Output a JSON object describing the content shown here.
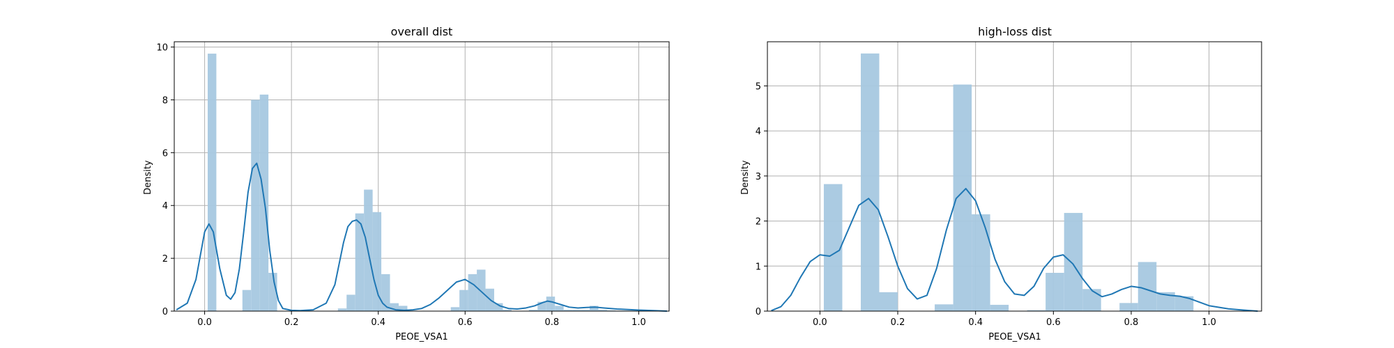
{
  "chart_data": [
    {
      "type": "histogram-kde",
      "title": "overall dist",
      "xlabel": "PEOE_VSA1",
      "ylabel": "Density",
      "xlim": [
        -0.07,
        1.07
      ],
      "ylim": [
        0,
        10.2
      ],
      "xticks": [
        0.0,
        0.2,
        0.4,
        0.6,
        0.8,
        1.0
      ],
      "xtick_labels": [
        "0.0",
        "0.2",
        "0.4",
        "0.6",
        "0.8",
        "1.0"
      ],
      "yticks": [
        0,
        2,
        4,
        6,
        8,
        10
      ],
      "ytick_labels": [
        "0",
        "2",
        "4",
        "6",
        "8",
        "10"
      ],
      "grid": true,
      "bar_color": "#a6c8e0",
      "line_color": "#1f77b4",
      "histogram": {
        "bin_edges": [
          0.007,
          0.027,
          0.047,
          0.067,
          0.087,
          0.107,
          0.127,
          0.147,
          0.167,
          0.187,
          0.207,
          0.227,
          0.247,
          0.267,
          0.287,
          0.307,
          0.327,
          0.347,
          0.367,
          0.387,
          0.407,
          0.427,
          0.447,
          0.467,
          0.487,
          0.507,
          0.527,
          0.547,
          0.567,
          0.587,
          0.607,
          0.627,
          0.647,
          0.667,
          0.687,
          0.707,
          0.727,
          0.747,
          0.767,
          0.787,
          0.807,
          0.827,
          0.847,
          0.867,
          0.887,
          0.907,
          0.927,
          0.947,
          0.967,
          0.987,
          1.007
        ],
        "heights": [
          9.75,
          0,
          0,
          0,
          0.8,
          8.0,
          8.2,
          1.45,
          0,
          0,
          0,
          0,
          0,
          0,
          0,
          0.1,
          0.62,
          3.7,
          4.6,
          3.75,
          1.4,
          0.3,
          0.2,
          0,
          0,
          0,
          0,
          0,
          0.15,
          0.8,
          1.4,
          1.57,
          0.85,
          0.3,
          0.05,
          0,
          0,
          0.05,
          0.35,
          0.55,
          0.2,
          0.05,
          0.05,
          0.05,
          0.2,
          0.05,
          0.03,
          0.02,
          0.02,
          0.02
        ]
      },
      "kde": {
        "x": [
          -0.065,
          -0.04,
          -0.02,
          -0.01,
          0.0,
          0.01,
          0.02,
          0.035,
          0.05,
          0.06,
          0.07,
          0.08,
          0.09,
          0.1,
          0.11,
          0.12,
          0.13,
          0.14,
          0.15,
          0.16,
          0.17,
          0.18,
          0.2,
          0.22,
          0.25,
          0.28,
          0.3,
          0.31,
          0.32,
          0.33,
          0.34,
          0.35,
          0.36,
          0.37,
          0.38,
          0.39,
          0.4,
          0.41,
          0.42,
          0.44,
          0.46,
          0.48,
          0.5,
          0.52,
          0.54,
          0.56,
          0.58,
          0.6,
          0.62,
          0.64,
          0.66,
          0.68,
          0.7,
          0.72,
          0.74,
          0.76,
          0.78,
          0.79,
          0.8,
          0.82,
          0.84,
          0.86,
          0.88,
          0.9,
          0.92,
          0.95,
          1.0,
          1.04,
          1.065
        ],
        "y": [
          0.05,
          0.3,
          1.2,
          2.1,
          3.0,
          3.3,
          3.0,
          1.6,
          0.6,
          0.45,
          0.7,
          1.6,
          3.0,
          4.5,
          5.4,
          5.6,
          5.0,
          3.9,
          2.3,
          1.1,
          0.4,
          0.1,
          0.03,
          0.02,
          0.05,
          0.3,
          1.0,
          1.8,
          2.6,
          3.2,
          3.4,
          3.45,
          3.3,
          2.8,
          2.0,
          1.2,
          0.6,
          0.3,
          0.15,
          0.05,
          0.03,
          0.05,
          0.1,
          0.25,
          0.5,
          0.8,
          1.1,
          1.2,
          1.0,
          0.7,
          0.4,
          0.2,
          0.1,
          0.08,
          0.12,
          0.2,
          0.33,
          0.38,
          0.35,
          0.25,
          0.15,
          0.12,
          0.14,
          0.15,
          0.12,
          0.08,
          0.04,
          0.015,
          0.0
        ]
      }
    },
    {
      "type": "histogram-kde",
      "title": "high-loss dist",
      "xlabel": "PEOE_VSA1",
      "ylabel": "Density",
      "xlim": [
        -0.135,
        1.135
      ],
      "ylim": [
        0,
        5.98
      ],
      "xticks": [
        0.0,
        0.2,
        0.4,
        0.6,
        0.8,
        1.0
      ],
      "xtick_labels": [
        "0.0",
        "0.2",
        "0.4",
        "0.6",
        "0.8",
        "1.0"
      ],
      "yticks": [
        0,
        1,
        2,
        3,
        4,
        5
      ],
      "ytick_labels": [
        "0",
        "1",
        "2",
        "3",
        "4",
        "5"
      ],
      "grid": true,
      "bar_color": "#a6c8e0",
      "line_color": "#1f77b4",
      "histogram": {
        "bin_edges": [
          0.01,
          0.0575,
          0.105,
          0.1525,
          0.2,
          0.2475,
          0.295,
          0.3425,
          0.39,
          0.4375,
          0.485,
          0.5325,
          0.58,
          0.6275,
          0.675,
          0.7225,
          0.77,
          0.8175,
          0.865,
          0.9125,
          0.96
        ],
        "heights": [
          2.82,
          0,
          5.72,
          0.42,
          0,
          0,
          0.15,
          5.03,
          2.15,
          0.14,
          0,
          0.02,
          0.85,
          2.18,
          0.49,
          0,
          0.18,
          1.09,
          0.42,
          0.33
        ]
      },
      "kde": {
        "x": [
          -0.125,
          -0.1,
          -0.075,
          -0.05,
          -0.025,
          0.0,
          0.025,
          0.05,
          0.075,
          0.1,
          0.125,
          0.15,
          0.175,
          0.2,
          0.225,
          0.25,
          0.275,
          0.3,
          0.325,
          0.35,
          0.375,
          0.4,
          0.425,
          0.45,
          0.475,
          0.5,
          0.525,
          0.55,
          0.575,
          0.6,
          0.625,
          0.65,
          0.675,
          0.7,
          0.725,
          0.75,
          0.775,
          0.8,
          0.825,
          0.85,
          0.875,
          0.9,
          0.925,
          0.95,
          0.975,
          1.0,
          1.05,
          1.1,
          1.125
        ],
        "y": [
          0.01,
          0.1,
          0.35,
          0.75,
          1.1,
          1.25,
          1.22,
          1.35,
          1.85,
          2.35,
          2.5,
          2.25,
          1.65,
          1.0,
          0.5,
          0.27,
          0.35,
          0.95,
          1.8,
          2.5,
          2.72,
          2.45,
          1.85,
          1.15,
          0.65,
          0.38,
          0.35,
          0.55,
          0.95,
          1.2,
          1.25,
          1.05,
          0.72,
          0.45,
          0.32,
          0.38,
          0.48,
          0.55,
          0.52,
          0.45,
          0.38,
          0.35,
          0.33,
          0.28,
          0.2,
          0.12,
          0.05,
          0.015,
          0.0
        ]
      }
    }
  ]
}
